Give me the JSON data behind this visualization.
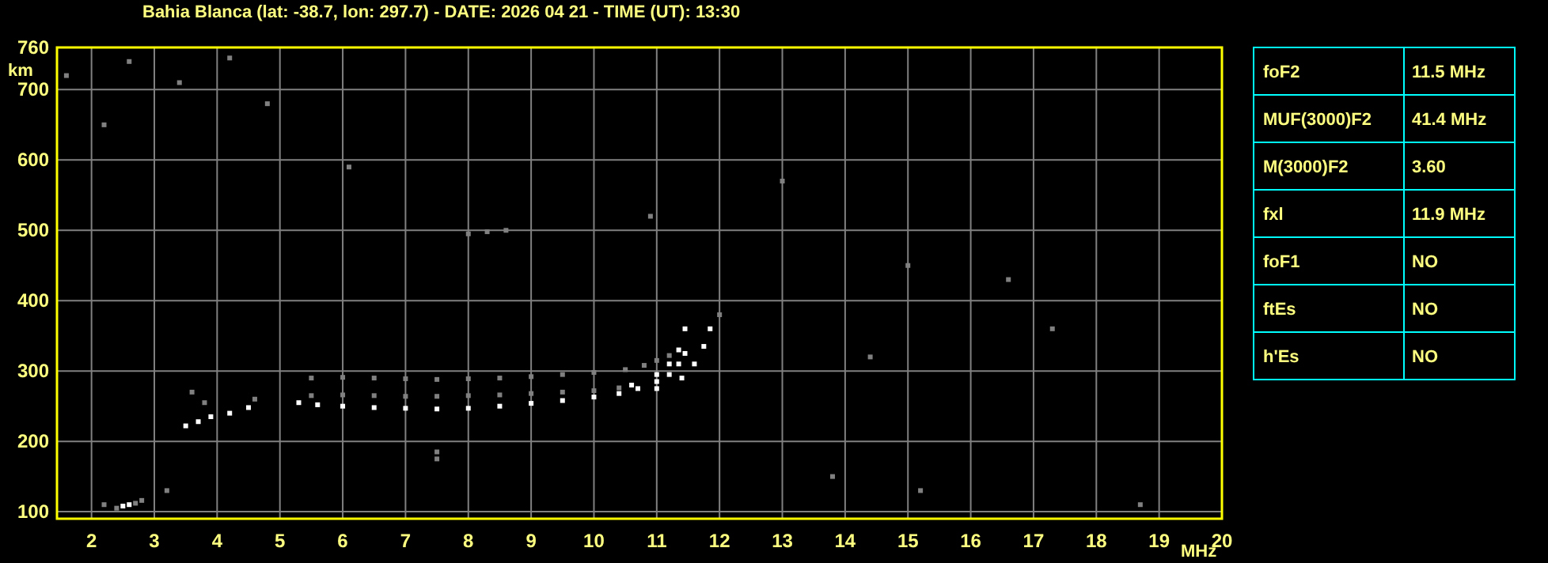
{
  "chart_data": [
    {
      "type": "scatter",
      "title": "Bahia Blanca (lat: -38.7, lon: 297.7) - DATE: 2026 04 21 - TIME (UT): 13:30",
      "xlabel": "MHz",
      "ylabel": "km",
      "xlim": [
        1.45,
        20
      ],
      "ylim": [
        90,
        760
      ],
      "xticks": [
        2,
        3,
        4,
        5,
        6,
        7,
        8,
        9,
        10,
        11,
        12,
        13,
        14,
        15,
        16,
        17,
        18,
        19,
        20
      ],
      "yticks": [
        100,
        200,
        300,
        400,
        500,
        600,
        700,
        760
      ],
      "grid": true,
      "marker": "square",
      "series": [
        {
          "color": "#808080",
          "x": [
            5.5,
            6.0,
            6.5,
            7.0,
            7.5,
            8.0,
            8.5,
            9.0,
            9.5,
            10.0,
            10.4,
            5.5,
            6.0,
            6.5,
            7.0,
            7.5,
            8.0,
            8.5,
            9.0,
            9.5,
            10.0,
            10.5,
            10.8,
            11.0,
            11.2,
            4.6,
            3.6,
            3.8,
            2.2,
            2.4,
            2.7,
            2.8,
            3.2,
            8.0,
            8.3,
            8.6,
            7.5,
            7.5,
            13.0,
            18.7,
            15.2,
            1.6,
            2.2,
            2.6,
            10.9,
            12.0,
            14.4,
            16.6,
            17.3,
            3.4,
            4.2,
            4.8,
            6.1,
            13.8,
            15.0
          ],
          "values": [
            265,
            266,
            265,
            264,
            264,
            265,
            266,
            268,
            270,
            272,
            276,
            290,
            291,
            290,
            289,
            288,
            289,
            290,
            292,
            295,
            298,
            302,
            308,
            315,
            322,
            260,
            270,
            255,
            110,
            105,
            112,
            116,
            130,
            495,
            498,
            500,
            185,
            175,
            570,
            110,
            130,
            720,
            650,
            740,
            520,
            380,
            320,
            430,
            360,
            710,
            745,
            680,
            590,
            150,
            450
          ]
        },
        {
          "color": "#ffffff",
          "x": [
            2.5,
            2.6,
            3.5,
            3.7,
            3.9,
            4.2,
            4.5,
            5.3,
            5.6,
            6.0,
            6.5,
            7.0,
            7.5,
            8.0,
            8.5,
            9.0,
            9.5,
            10.0,
            10.4,
            10.7,
            11.0,
            11.2,
            11.35,
            11.45,
            10.6,
            11.0,
            11.2,
            11.35,
            11.45,
            11.0,
            11.4,
            11.6,
            11.75,
            11.85
          ],
          "values": [
            108,
            110,
            222,
            228,
            235,
            240,
            248,
            255,
            252,
            250,
            248,
            247,
            246,
            247,
            250,
            254,
            258,
            263,
            268,
            275,
            285,
            295,
            310,
            325,
            280,
            295,
            310,
            330,
            360,
            275,
            290,
            310,
            335,
            360
          ]
        }
      ]
    },
    {
      "type": "other",
      "annotations": [
        "foF2",
        "11.5 MHz",
        "MUF(3000)F2",
        "41.4 MHz",
        "M(3000)F2",
        "3.60",
        "fxl",
        "11.9 MHz",
        "foF1",
        "NO",
        "ftEs",
        "NO",
        "h'Es",
        "NO"
      ]
    }
  ]
}
